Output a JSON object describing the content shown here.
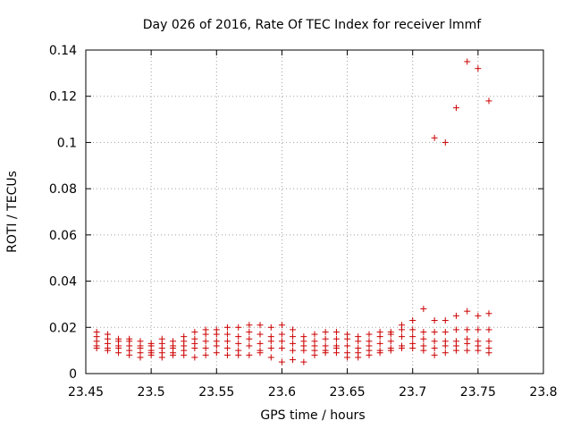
{
  "chart_data": {
    "type": "scatter",
    "title": "Day 026 of 2016, Rate Of TEC Index for receiver lmmf",
    "xlabel": "GPS time / hours",
    "ylabel": "ROTI / TECUs",
    "xlim": [
      23.45,
      23.8
    ],
    "ylim": [
      0,
      0.14
    ],
    "xticks": [
      23.45,
      23.5,
      23.55,
      23.6,
      23.65,
      23.7,
      23.75,
      23.8
    ],
    "xtick_labels": [
      "23.45",
      "23.5",
      "23.55",
      "23.6",
      "23.65",
      "23.7",
      "23.75",
      "23.8"
    ],
    "yticks": [
      0,
      0.02,
      0.04,
      0.06,
      0.08,
      0.1,
      0.12,
      0.14
    ],
    "ytick_labels": [
      "0",
      "0.02",
      "0.04",
      "0.06",
      "0.08",
      "0.1",
      "0.12",
      "0.14"
    ],
    "grid": true,
    "marker": "+",
    "color": "#cc0000",
    "groups": [
      {
        "x": 23.4583,
        "y": [
          0.018,
          0.016,
          0.014,
          0.012,
          0.011
        ]
      },
      {
        "x": 23.4667,
        "y": [
          0.017,
          0.015,
          0.013,
          0.011,
          0.01
        ]
      },
      {
        "x": 23.475,
        "y": [
          0.015,
          0.014,
          0.012,
          0.011,
          0.009
        ]
      },
      {
        "x": 23.4833,
        "y": [
          0.015,
          0.014,
          0.012,
          0.01,
          0.008
        ]
      },
      {
        "x": 23.4917,
        "y": [
          0.014,
          0.012,
          0.011,
          0.009,
          0.007
        ]
      },
      {
        "x": 23.5,
        "y": [
          0.013,
          0.012,
          0.01,
          0.009,
          0.008
        ]
      },
      {
        "x": 23.5083,
        "y": [
          0.015,
          0.013,
          0.011,
          0.009,
          0.007
        ]
      },
      {
        "x": 23.5167,
        "y": [
          0.014,
          0.012,
          0.011,
          0.009,
          0.008
        ]
      },
      {
        "x": 23.525,
        "y": [
          0.016,
          0.014,
          0.012,
          0.01,
          0.008
        ]
      },
      {
        "x": 23.5333,
        "y": [
          0.018,
          0.015,
          0.013,
          0.011,
          0.007
        ]
      },
      {
        "x": 23.5417,
        "y": [
          0.019,
          0.017,
          0.014,
          0.011,
          0.008
        ]
      },
      {
        "x": 23.55,
        "y": [
          0.019,
          0.017,
          0.014,
          0.012,
          0.009
        ]
      },
      {
        "x": 23.5583,
        "y": [
          0.02,
          0.017,
          0.014,
          0.011,
          0.008
        ]
      },
      {
        "x": 23.5667,
        "y": [
          0.02,
          0.016,
          0.013,
          0.01,
          0.008
        ]
      },
      {
        "x": 23.575,
        "y": [
          0.021,
          0.018,
          0.015,
          0.012,
          0.008
        ]
      },
      {
        "x": 23.5833,
        "y": [
          0.021,
          0.017,
          0.013,
          0.01,
          0.009
        ]
      },
      {
        "x": 23.5917,
        "y": [
          0.02,
          0.016,
          0.014,
          0.011,
          0.007
        ]
      },
      {
        "x": 23.6,
        "y": [
          0.021,
          0.017,
          0.014,
          0.011,
          0.005
        ]
      },
      {
        "x": 23.6083,
        "y": [
          0.019,
          0.016,
          0.013,
          0.01,
          0.006
        ]
      },
      {
        "x": 23.6167,
        "y": [
          0.016,
          0.014,
          0.012,
          0.01,
          0.005
        ]
      },
      {
        "x": 23.625,
        "y": [
          0.017,
          0.014,
          0.012,
          0.01,
          0.008
        ]
      },
      {
        "x": 23.6333,
        "y": [
          0.018,
          0.015,
          0.012,
          0.01,
          0.009
        ]
      },
      {
        "x": 23.6417,
        "y": [
          0.018,
          0.015,
          0.012,
          0.011,
          0.009
        ]
      },
      {
        "x": 23.65,
        "y": [
          0.017,
          0.015,
          0.012,
          0.009,
          0.007
        ]
      },
      {
        "x": 23.6583,
        "y": [
          0.016,
          0.014,
          0.011,
          0.009,
          0.007
        ]
      },
      {
        "x": 23.6667,
        "y": [
          0.017,
          0.014,
          0.012,
          0.01,
          0.008
        ]
      },
      {
        "x": 23.675,
        "y": [
          0.018,
          0.016,
          0.013,
          0.01,
          0.009
        ]
      },
      {
        "x": 23.6833,
        "y": [
          0.018,
          0.017,
          0.014,
          0.011,
          0.01
        ]
      },
      {
        "x": 23.6917,
        "y": [
          0.021,
          0.019,
          0.016,
          0.012,
          0.011
        ]
      },
      {
        "x": 23.7,
        "y": [
          0.023,
          0.019,
          0.016,
          0.013,
          0.011
        ]
      },
      {
        "x": 23.7083,
        "y": [
          0.028,
          0.018,
          0.015,
          0.012,
          0.01
        ]
      },
      {
        "x": 23.7167,
        "y": [
          0.102,
          0.023,
          0.018,
          0.014,
          0.011,
          0.008
        ]
      },
      {
        "x": 23.725,
        "y": [
          0.1,
          0.023,
          0.018,
          0.014,
          0.012,
          0.009
        ]
      },
      {
        "x": 23.7333,
        "y": [
          0.115,
          0.025,
          0.019,
          0.014,
          0.012,
          0.01
        ]
      },
      {
        "x": 23.7417,
        "y": [
          0.135,
          0.027,
          0.019,
          0.015,
          0.013,
          0.01
        ]
      },
      {
        "x": 23.75,
        "y": [
          0.132,
          0.025,
          0.019,
          0.014,
          0.012,
          0.01
        ]
      },
      {
        "x": 23.7583,
        "y": [
          0.118,
          0.026,
          0.019,
          0.014,
          0.011,
          0.009
        ]
      }
    ]
  }
}
